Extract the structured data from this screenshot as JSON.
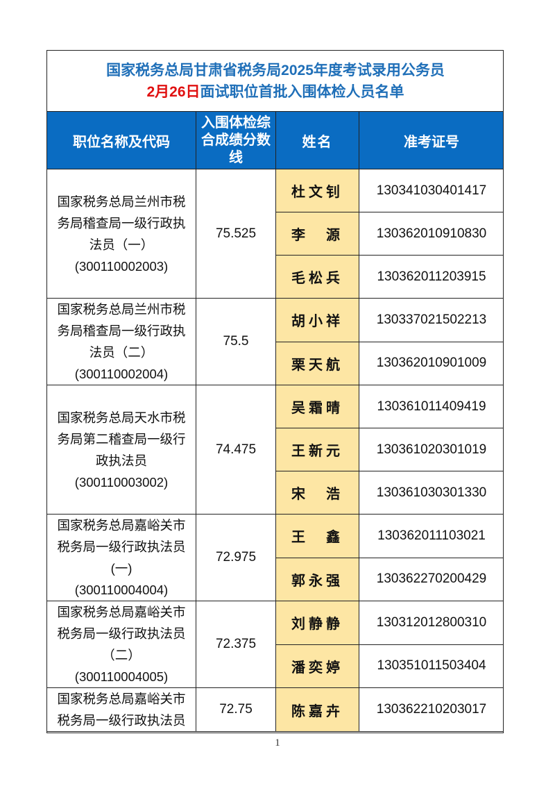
{
  "title": {
    "line1": "国家税务总局甘肃省税务局2025年度考试录用公务员",
    "line2_date": "2月26日",
    "line2_rest": "面试职位首批入围体检人员名单"
  },
  "headers": {
    "position": "职位名称及代码",
    "score": "入围体检综合成绩分数线",
    "name": "姓名",
    "exam_id": "准考证号"
  },
  "groups": [
    {
      "position": "国家税务总局兰州市税\n务局稽查局一级行政执\n法员（一）\n(300110002003)",
      "score": "75.525",
      "people": [
        {
          "name": "杜文钊",
          "id": "130341030401417"
        },
        {
          "name": "李　源",
          "id": "130362010910830"
        },
        {
          "name": "毛松兵",
          "id": "130362011203915"
        }
      ]
    },
    {
      "position": "国家税务总局兰州市税\n务局稽查局一级行政执\n法员（二）\n(300110002004)",
      "score": "75.5",
      "people": [
        {
          "name": "胡小祥",
          "id": "130337021502213"
        },
        {
          "name": "栗天航",
          "id": "130362010901009"
        }
      ]
    },
    {
      "position": "国家税务总局天水市税\n务局第二稽查局一级行\n政执法员\n(300110003002)",
      "score": "74.475",
      "people": [
        {
          "name": "吴霜晴",
          "id": "130361011409419"
        },
        {
          "name": "王新元",
          "id": "130361020301019"
        },
        {
          "name": "宋　浩",
          "id": "130361030301330"
        }
      ]
    },
    {
      "position": "国家税务总局嘉峪关市\n税务局一级行政执法员\n(一)\n(300110004004)",
      "score": "72.975",
      "people": [
        {
          "name": "王　鑫",
          "id": "130362011103021"
        },
        {
          "name": "郭永强",
          "id": "130362270200429"
        }
      ]
    },
    {
      "position": "国家税务总局嘉峪关市\n税务局一级行政执法员\n（二）\n(300110004005)",
      "score": "72.375",
      "people": [
        {
          "name": "刘静静",
          "id": "130312012800310"
        },
        {
          "name": "潘奕婷",
          "id": "130351011503404"
        }
      ]
    },
    {
      "position": "国家税务总局嘉峪关市\n税务局一级行政执法员",
      "score": "72.75",
      "people": [
        {
          "name": "陈嘉卉",
          "id": "130362210203017"
        }
      ]
    }
  ],
  "page_number": "1",
  "colors": {
    "header_bg": "#0a6cc2",
    "title_blue": "#1f6fb8",
    "title_red": "#e01010",
    "name_bg": "#fde6a4"
  }
}
